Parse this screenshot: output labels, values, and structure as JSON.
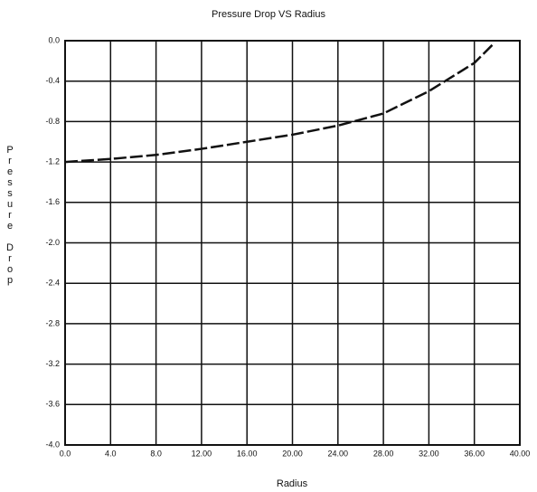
{
  "chart_data": {
    "type": "line",
    "title": "Pressure Drop VS Radius",
    "x_label": "Radius",
    "y_label": "Pressure Drop",
    "x": [
      0,
      4,
      8,
      12,
      16,
      20,
      24,
      28,
      32,
      36,
      37.6
    ],
    "series": [
      {
        "name": "Pressure Drop",
        "color": "#111111",
        "values": [
          -1.2,
          -1.17,
          -1.13,
          -1.07,
          -1.0,
          -0.93,
          -0.84,
          -0.72,
          -0.5,
          -0.22,
          -0.04
        ]
      }
    ],
    "xlim": [
      0,
      40
    ],
    "ylim": [
      -4,
      0
    ],
    "xticks": [
      {
        "value": 0,
        "label": "0.0"
      },
      {
        "value": 4,
        "label": "4.0"
      },
      {
        "value": 8,
        "label": "8.0"
      },
      {
        "value": 12,
        "label": "12.00"
      },
      {
        "value": 16,
        "label": "16.00"
      },
      {
        "value": 20,
        "label": "20.00"
      },
      {
        "value": 24,
        "label": "24.00"
      },
      {
        "value": 28,
        "label": "28.00"
      },
      {
        "value": 32,
        "label": "32.00"
      },
      {
        "value": 36,
        "label": "36.00"
      },
      {
        "value": 40,
        "label": "40.00"
      }
    ],
    "yticks": [
      {
        "value": 0,
        "label": "0.0"
      },
      -0.4,
      -0.8,
      -1.2,
      -1.6,
      {
        "value": -2,
        "label": "-2.0"
      },
      -2.4,
      -2.8,
      -3.2,
      -3.6,
      {
        "value": -4,
        "label": "-4.0"
      }
    ],
    "grid": true
  }
}
